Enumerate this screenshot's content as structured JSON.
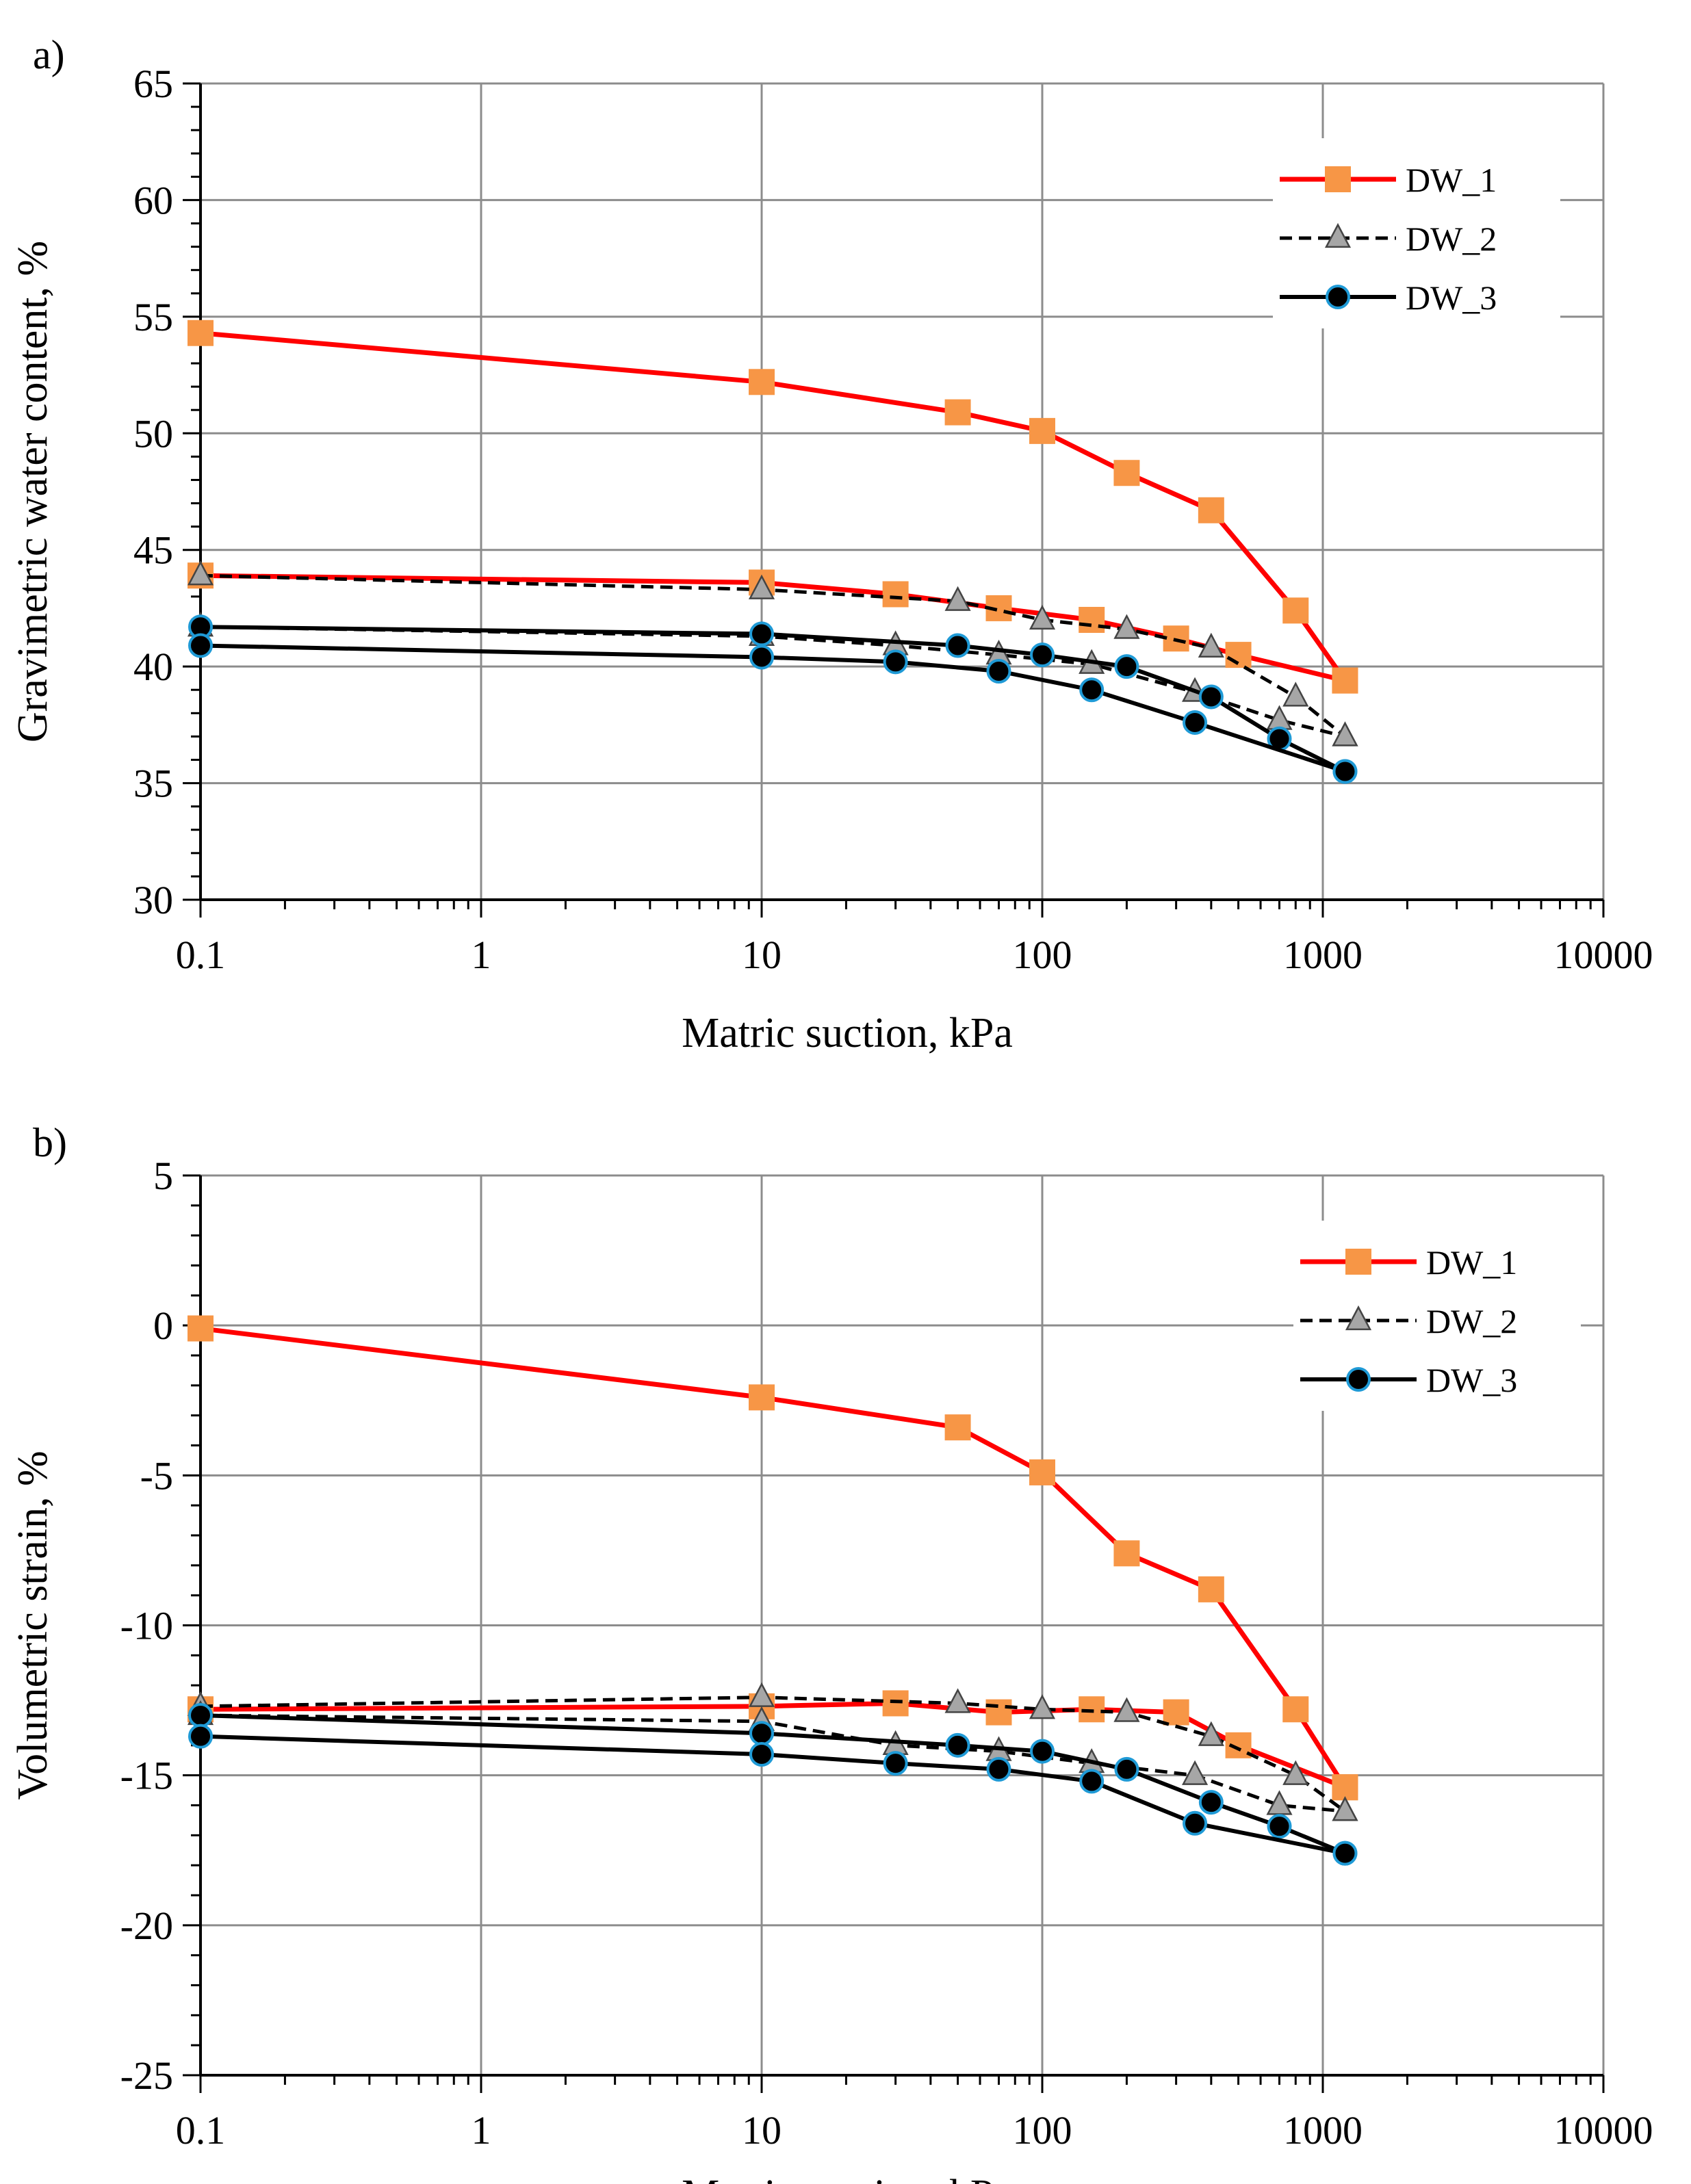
{
  "chart_data": [
    {
      "panel": "a)",
      "type": "line",
      "xscale": "log",
      "xlim": [
        0.1,
        10000
      ],
      "ylim": [
        30,
        65
      ],
      "xticks": [
        "0.1",
        "1",
        "10",
        "100",
        "1000",
        "10000"
      ],
      "yticks": [
        "30",
        "35",
        "40",
        "45",
        "50",
        "55",
        "60",
        "65"
      ],
      "xlabel": "Matric suction, kPa",
      "ylabel": "Gravimetric water content, %",
      "grid": true,
      "legend_position": "top-right",
      "series": [
        {
          "name": "DW_1",
          "style": "dw1",
          "x": [
            0.1,
            10,
            50,
            100,
            200,
            400,
            800,
            1200
          ],
          "y": [
            54.3,
            52.2,
            50.9,
            50.1,
            48.3,
            46.7,
            42.4,
            39.4
          ]
        },
        {
          "name": "DW_1",
          "style": "dw1",
          "legend": false,
          "x": [
            0.1,
            10,
            30,
            70,
            150,
            300,
            500,
            1200
          ],
          "y": [
            43.9,
            43.6,
            43.1,
            42.5,
            42.0,
            41.2,
            40.5,
            39.4
          ]
        },
        {
          "name": "DW_2",
          "style": "dw2",
          "x": [
            0.1,
            10,
            50,
            100,
            200,
            400,
            800,
            1200
          ],
          "y": [
            43.9,
            43.3,
            42.8,
            42.0,
            41.6,
            40.8,
            38.7,
            37.0
          ]
        },
        {
          "name": "DW_2",
          "style": "dw2",
          "legend": false,
          "x": [
            0.1,
            10,
            30,
            70,
            150,
            350,
            700,
            1200
          ],
          "y": [
            41.7,
            41.3,
            40.9,
            40.5,
            40.1,
            38.9,
            37.7,
            37.0
          ]
        },
        {
          "name": "DW_3",
          "style": "dw3",
          "x": [
            0.1,
            10,
            50,
            100,
            200,
            400,
            700,
            1200
          ],
          "y": [
            41.7,
            41.4,
            40.9,
            40.5,
            40.0,
            38.7,
            36.9,
            35.5
          ]
        },
        {
          "name": "DW_3",
          "style": "dw3",
          "legend": false,
          "x": [
            0.1,
            10,
            30,
            70,
            150,
            350,
            1200
          ],
          "y": [
            40.9,
            40.4,
            40.2,
            39.8,
            39.0,
            37.6,
            35.5
          ]
        }
      ]
    },
    {
      "panel": "b)",
      "type": "line",
      "xscale": "log",
      "xlim": [
        0.1,
        10000
      ],
      "ylim": [
        -25,
        5
      ],
      "xticks": [
        "0.1",
        "1",
        "10",
        "100",
        "1000",
        "10000"
      ],
      "yticks": [
        "-25",
        "-20",
        "-15",
        "-10",
        "-5",
        "0",
        "5"
      ],
      "xlabel": "Matric suction, kPa",
      "ylabel": "Volumetric strain, %",
      "grid": true,
      "legend_position": "top-right",
      "series": [
        {
          "name": "DW_1",
          "style": "dw1",
          "x": [
            0.1,
            10,
            50,
            100,
            200,
            400,
            800,
            1200
          ],
          "y": [
            -0.1,
            -2.4,
            -3.4,
            -4.9,
            -7.6,
            -8.8,
            -12.8,
            -15.4
          ]
        },
        {
          "name": "DW_1",
          "style": "dw1",
          "legend": false,
          "x": [
            0.1,
            10,
            30,
            70,
            150,
            300,
            500,
            1200
          ],
          "y": [
            -12.8,
            -12.7,
            -12.6,
            -12.9,
            -12.8,
            -12.9,
            -14.0,
            -15.4
          ]
        },
        {
          "name": "DW_2",
          "style": "dw2",
          "x": [
            0.1,
            10,
            50,
            100,
            200,
            400,
            800,
            1200
          ],
          "y": [
            -12.7,
            -12.4,
            -12.6,
            -12.8,
            -12.9,
            -13.7,
            -15.0,
            -16.2
          ]
        },
        {
          "name": "DW_2",
          "style": "dw2",
          "legend": false,
          "x": [
            0.1,
            10,
            30,
            70,
            150,
            350,
            700,
            1200
          ],
          "y": [
            -13.0,
            -13.2,
            -14.0,
            -14.2,
            -14.6,
            -15.0,
            -16.0,
            -16.2
          ]
        },
        {
          "name": "DW_3",
          "style": "dw3",
          "x": [
            0.1,
            10,
            50,
            100,
            200,
            400,
            700,
            1200
          ],
          "y": [
            -13.0,
            -13.6,
            -14.0,
            -14.2,
            -14.8,
            -15.9,
            -16.7,
            -17.6
          ]
        },
        {
          "name": "DW_3",
          "style": "dw3",
          "legend": false,
          "x": [
            0.1,
            10,
            30,
            70,
            150,
            350,
            1200
          ],
          "y": [
            -13.7,
            -14.3,
            -14.6,
            -14.8,
            -15.2,
            -16.6,
            -17.6
          ]
        }
      ]
    }
  ],
  "colors": {
    "dw1_line": "#ff0000",
    "dw1_marker": "#f79646",
    "dw2_line": "#000000",
    "dw2_marker": "#a6a6a6",
    "dw3_line": "#000000",
    "dw3_marker": "#000000",
    "dw3_marker_edge": "#1f9ad6",
    "grid": "#8c8c8c"
  }
}
